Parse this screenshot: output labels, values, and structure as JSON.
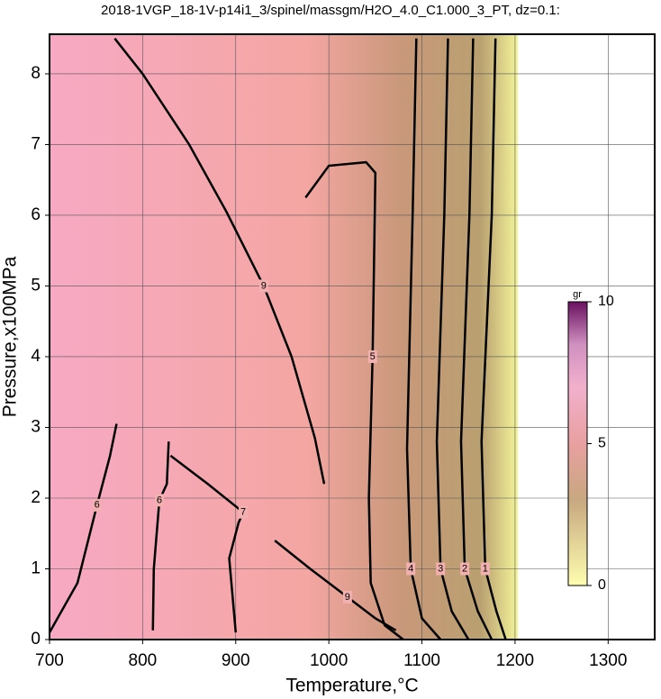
{
  "chart_data": {
    "type": "contour",
    "title": "2018-1VGP_18-1V-p14i1_3/spinel/massgm/H2O_4.0_C1.000_3_PT, dz=0.1:",
    "x_label": "Temperature,°C",
    "y_label": "Pressure,x100MPa",
    "xlim": [
      700,
      1350
    ],
    "ylim": [
      0,
      8.56
    ],
    "xticks": [
      700,
      800,
      900,
      1000,
      1100,
      1200,
      1300
    ],
    "yticks": [
      0,
      1,
      2,
      3,
      4,
      5,
      6,
      7,
      8
    ],
    "grid": true,
    "contours": [
      {
        "level": 9,
        "x": [
          770,
          800,
          850,
          890,
          930,
          960,
          985,
          995
        ],
        "y": [
          8.5,
          8.0,
          7.0,
          6.05,
          5.0,
          4.0,
          2.85,
          2.2
        ]
      },
      {
        "level": 9,
        "x": [
          942,
          980,
          1020,
          1050,
          1072
        ],
        "y": [
          1.4,
          1.0,
          0.6,
          0.3,
          0.13
        ]
      },
      {
        "level": 5,
        "x": [
          975,
          1000,
          1040,
          1050,
          1047,
          1043,
          1045,
          1060,
          1080
        ],
        "y": [
          6.25,
          6.7,
          6.75,
          6.6,
          4.0,
          2.0,
          0.8,
          0.2,
          0.0
        ]
      },
      {
        "level": 4,
        "x": [
          1094,
          1090,
          1084,
          1088,
          1100,
          1120
        ],
        "y": [
          8.5,
          6.0,
          2.7,
          1.0,
          0.3,
          0.0
        ]
      },
      {
        "level": 3,
        "x": [
          1128,
          1124,
          1116,
          1120,
          1132,
          1150
        ],
        "y": [
          8.5,
          6.0,
          2.8,
          1.0,
          0.4,
          0.0
        ]
      },
      {
        "level": 2,
        "x": [
          1155,
          1151,
          1142,
          1146,
          1160,
          1175
        ],
        "y": [
          8.5,
          6.0,
          2.8,
          1.0,
          0.4,
          0.0
        ]
      },
      {
        "level": 1,
        "x": [
          1179,
          1175,
          1164,
          1168,
          1180,
          1190
        ],
        "y": [
          8.5,
          6.0,
          2.8,
          1.0,
          0.4,
          0.0
        ]
      },
      {
        "level": 6,
        "x": [
          811,
          812,
          818,
          826,
          828
        ],
        "y": [
          0.13,
          1.0,
          1.97,
          2.2,
          2.8
        ]
      },
      {
        "level": 6,
        "x": [
          700,
          730,
          751,
          765,
          772
        ],
        "y": [
          0.1,
          0.8,
          1.9,
          2.6,
          3.05
        ]
      },
      {
        "level": 7,
        "x": [
          900,
          893,
          903,
          908,
          870,
          830
        ],
        "y": [
          0.1,
          1.15,
          1.65,
          1.8,
          2.2,
          2.6
        ]
      }
    ],
    "colorbar": {
      "label": "gr",
      "lim": [
        0,
        10
      ],
      "ticks": [
        0,
        5,
        10
      ]
    }
  }
}
